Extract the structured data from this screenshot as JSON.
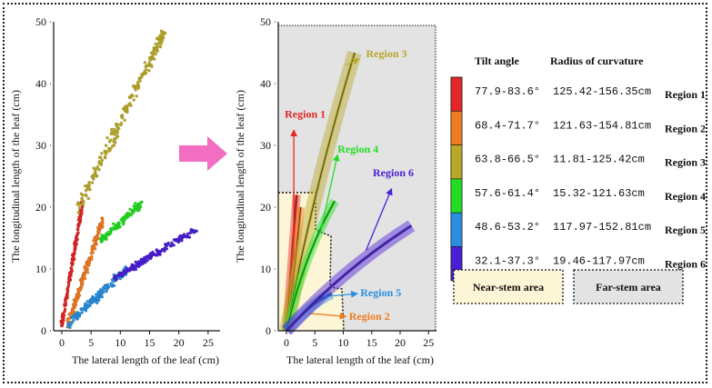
{
  "chart_data": [
    {
      "type": "scatter",
      "xlabel": "The lateral length of the leaf (cm)",
      "ylabel": "The longitudinal length of the leaf (cm)",
      "xlim": [
        -2,
        25
      ],
      "ylim": [
        0,
        50
      ],
      "xticks": [
        "0",
        "5",
        "10",
        "15",
        "20",
        "25"
      ],
      "yticks": [
        "0",
        "10",
        "20",
        "30",
        "40",
        "50"
      ],
      "series": [
        {
          "name": "Region 1",
          "color": "#e32626",
          "x_range": [
            0,
            3.5
          ],
          "y_range": [
            1,
            20.5
          ]
        },
        {
          "name": "Region 2",
          "color": "#f07b22",
          "x_range": [
            1,
            7
          ],
          "y_range": [
            1,
            18
          ]
        },
        {
          "name": "Region 3",
          "color": "#b8a828",
          "x_range": [
            3,
            17.5
          ],
          "y_range": [
            20,
            48.5
          ]
        },
        {
          "name": "Region 4",
          "color": "#22dd22",
          "x_range": [
            6.5,
            13.5
          ],
          "y_range": [
            14.5,
            20.5
          ]
        },
        {
          "name": "Region 5",
          "color": "#2a8fe0",
          "x_range": [
            1,
            11
          ],
          "y_range": [
            1,
            10
          ]
        },
        {
          "name": "Region 6",
          "color": "#4b1fd6",
          "x_range": [
            9,
            23
          ],
          "y_range": [
            8.5,
            16.5
          ]
        }
      ]
    },
    {
      "type": "diagram",
      "xlabel": "The lateral length of the leaf (cm)",
      "ylabel": "The longitudinal length of the leaf (cm)",
      "xlim": [
        -2,
        25
      ],
      "ylim": [
        0,
        50
      ],
      "xticks": [
        "0",
        "5",
        "10",
        "15",
        "20",
        "25"
      ],
      "yticks": [
        "0",
        "10",
        "20",
        "30",
        "40",
        "50"
      ],
      "regions": [
        {
          "label": "Region 1",
          "color": "#e32626",
          "curve": [
            [
              0,
              0
            ],
            [
              1,
              12
            ],
            [
              1.8,
              22
            ]
          ],
          "label_pos": [
            0.5,
            34.5
          ]
        },
        {
          "label": "Region 2",
          "color": "#f07b22",
          "curve": [
            [
              0,
              0
            ],
            [
              1.5,
              10
            ],
            [
              2.5,
              20
            ]
          ],
          "label_pos": [
            12,
            2
          ]
        },
        {
          "label": "Region 3",
          "color": "#b8a828",
          "curve": [
            [
              0,
              0
            ],
            [
              4.5,
              22
            ],
            [
              12,
              45
            ]
          ],
          "label_pos": [
            15,
            44
          ]
        },
        {
          "label": "Region 4",
          "color": "#22dd22",
          "curve": [
            [
              0,
              0
            ],
            [
              3,
              12
            ],
            [
              8.5,
              21
            ]
          ],
          "label_pos": [
            13.5,
            29
          ]
        },
        {
          "label": "Region 5",
          "color": "#2a8fe0",
          "curve": [
            [
              0,
              0
            ],
            [
              5,
              5
            ],
            [
              8,
              6
            ]
          ],
          "label_pos": [
            15,
            6
          ]
        },
        {
          "label": "Region 6",
          "color": "#4b1fd6",
          "curve": [
            [
              0,
              0
            ],
            [
              10,
              10
            ],
            [
              22,
              17
            ]
          ],
          "label_pos": [
            17.5,
            24.5
          ]
        }
      ],
      "areas": [
        {
          "name": "Near-stem area",
          "color": "#fdf6d6"
        },
        {
          "name": "Far-stem area",
          "color": "#e3e3e3"
        }
      ]
    }
  ],
  "table": {
    "header_tilt": "Tilt angle",
    "header_radius": "Radius of curvature",
    "rows": [
      {
        "color": "#e32626",
        "tilt": "77.9-83.6°",
        "radius": "125.42-156.35cm",
        "label": "Region 1"
      },
      {
        "color": "#f07b22",
        "tilt": "68.4-71.7°",
        "radius": "121.63-154.81cm",
        "label": "Region 2"
      },
      {
        "color": "#b8a828",
        "tilt": "63.8-66.5°",
        "radius": "11.81-125.42cm",
        "label": "Region 3"
      },
      {
        "color": "#22dd22",
        "tilt": "57.6-61.4°",
        "radius": "15.32-121.63cm",
        "label": "Region 4"
      },
      {
        "color": "#2a8fe0",
        "tilt": "48.6-53.2°",
        "radius": "117.97-152.81cm",
        "label": "Region 5"
      },
      {
        "color": "#4b1fd6",
        "tilt": "32.1-37.3°",
        "radius": "19.46-117.97cm",
        "label": "Region 6"
      }
    ]
  },
  "legend": {
    "near": "Near-stem area",
    "far": "Far-stem area",
    "near_color": "#fdf6d6",
    "far_color": "#e3e3e3"
  },
  "arrow_color": "#f26ec3"
}
